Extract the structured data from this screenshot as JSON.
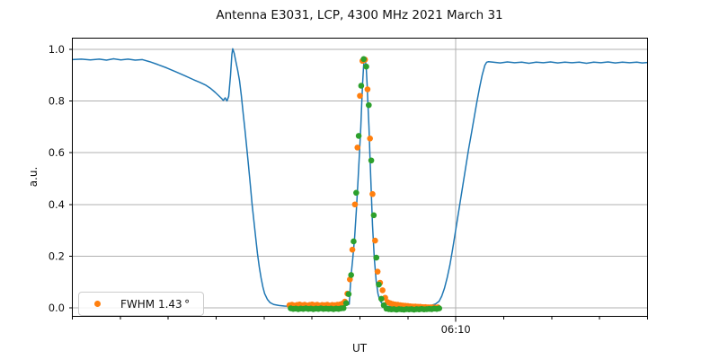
{
  "figure": {
    "title": "Antenna E3031, LCP, 4300 MHz 2021 March 31"
  },
  "chart_data": {
    "type": "line",
    "title": "Antenna E3031, LCP, 4300 MHz 2021 March 31",
    "xlabel": "UT",
    "ylabel": "a.u.",
    "x_axis": {
      "lim": [
        0,
        60
      ],
      "unit": "minutes since 05:30 UT (estimated from 5-min minor ticks)",
      "minor_tick_step": 5,
      "major_ticks": [
        {
          "x": 40,
          "label": "06:10"
        }
      ]
    },
    "y_axis": {
      "lim": [
        -0.033,
        1.043
      ],
      "ticks": [
        0.0,
        0.2,
        0.4,
        0.6,
        0.8,
        1.0
      ]
    },
    "grid": {
      "horizontal": true,
      "vertical_major_only": true,
      "color": "#b0b0b0"
    },
    "colors": {
      "line": "#1f77b4",
      "scatter_a": "#ff7f0e",
      "scatter_b": "#2ca02c",
      "spine": "#000000"
    },
    "legend": {
      "label": "FWHM 1.43 °",
      "position": "lower left",
      "marker_color": "#ff7f0e"
    },
    "series": [
      {
        "name": "drift-scan-line",
        "type": "line",
        "color": "#1f77b4",
        "width": 1.5,
        "points": [
          [
            0,
            0.96
          ],
          [
            0.94,
            0.962
          ],
          [
            1.88,
            0.959
          ],
          [
            2.81,
            0.962
          ],
          [
            3.56,
            0.958
          ],
          [
            4.31,
            0.963
          ],
          [
            5.06,
            0.959
          ],
          [
            5.81,
            0.962
          ],
          [
            6.56,
            0.958
          ],
          [
            7.31,
            0.96
          ],
          [
            8.06,
            0.952
          ],
          [
            8.91,
            0.941
          ],
          [
            9.84,
            0.928
          ],
          [
            10.78,
            0.913
          ],
          [
            11.72,
            0.898
          ],
          [
            12.66,
            0.882
          ],
          [
            13.31,
            0.872
          ],
          [
            13.88,
            0.862
          ],
          [
            14.44,
            0.848
          ],
          [
            14.91,
            0.833
          ],
          [
            15.28,
            0.82
          ],
          [
            15.56,
            0.81
          ],
          [
            15.75,
            0.802
          ],
          [
            15.94,
            0.812
          ],
          [
            16.13,
            0.8
          ],
          [
            16.31,
            0.818
          ],
          [
            16.5,
            0.9
          ],
          [
            16.64,
            0.98
          ],
          [
            16.73,
            1.002
          ],
          [
            16.88,
            0.985
          ],
          [
            17.06,
            0.952
          ],
          [
            17.25,
            0.918
          ],
          [
            17.44,
            0.878
          ],
          [
            17.63,
            0.82
          ],
          [
            17.81,
            0.755
          ],
          [
            18.0,
            0.69
          ],
          [
            18.19,
            0.62
          ],
          [
            18.38,
            0.548
          ],
          [
            18.56,
            0.478
          ],
          [
            18.75,
            0.4
          ],
          [
            18.94,
            0.335
          ],
          [
            19.13,
            0.27
          ],
          [
            19.31,
            0.21
          ],
          [
            19.5,
            0.158
          ],
          [
            19.69,
            0.115
          ],
          [
            19.88,
            0.08
          ],
          [
            20.06,
            0.055
          ],
          [
            20.34,
            0.033
          ],
          [
            20.63,
            0.02
          ],
          [
            21.0,
            0.013
          ],
          [
            21.56,
            0.009
          ],
          [
            22.13,
            0.007
          ],
          [
            22.88,
            0.006
          ],
          [
            23.81,
            0.005
          ],
          [
            24.75,
            0.005
          ],
          [
            25.69,
            0.005
          ],
          [
            26.63,
            0.005
          ],
          [
            27.56,
            0.006
          ],
          [
            28.31,
            0.008
          ],
          [
            28.88,
            0.014
          ],
          [
            29.06,
            0.12
          ],
          [
            29.25,
            0.19
          ],
          [
            29.44,
            0.27
          ],
          [
            29.63,
            0.38
          ],
          [
            29.81,
            0.5
          ],
          [
            29.91,
            0.57
          ],
          [
            30.0,
            0.635
          ],
          [
            30.09,
            0.7
          ],
          [
            30.19,
            0.795
          ],
          [
            30.28,
            0.87
          ],
          [
            30.38,
            0.935
          ],
          [
            30.47,
            0.967
          ],
          [
            30.56,
            0.962
          ],
          [
            30.66,
            0.925
          ],
          [
            30.75,
            0.862
          ],
          [
            30.84,
            0.78
          ],
          [
            30.94,
            0.7
          ],
          [
            31.03,
            0.6
          ],
          [
            31.13,
            0.5
          ],
          [
            31.22,
            0.41
          ],
          [
            31.31,
            0.32
          ],
          [
            31.5,
            0.19
          ],
          [
            31.69,
            0.105
          ],
          [
            31.88,
            0.055
          ],
          [
            32.06,
            0.03
          ],
          [
            32.34,
            0.015
          ],
          [
            32.63,
            0.008
          ],
          [
            33.0,
            0.005
          ],
          [
            33.75,
            0.004
          ],
          [
            34.69,
            0.004
          ],
          [
            35.63,
            0.004
          ],
          [
            36.56,
            0.005
          ],
          [
            37.31,
            0.008
          ],
          [
            37.88,
            0.015
          ],
          [
            38.25,
            0.025
          ],
          [
            38.53,
            0.045
          ],
          [
            38.81,
            0.075
          ],
          [
            39.09,
            0.115
          ],
          [
            39.38,
            0.165
          ],
          [
            39.66,
            0.225
          ],
          [
            39.94,
            0.29
          ],
          [
            40.22,
            0.355
          ],
          [
            40.5,
            0.42
          ],
          [
            40.78,
            0.485
          ],
          [
            41.06,
            0.55
          ],
          [
            41.34,
            0.615
          ],
          [
            41.63,
            0.675
          ],
          [
            41.91,
            0.735
          ],
          [
            42.19,
            0.795
          ],
          [
            42.47,
            0.85
          ],
          [
            42.75,
            0.9
          ],
          [
            43.03,
            0.938
          ],
          [
            43.22,
            0.95
          ],
          [
            43.41,
            0.952
          ],
          [
            43.88,
            0.95
          ],
          [
            44.63,
            0.947
          ],
          [
            45.38,
            0.951
          ],
          [
            46.13,
            0.948
          ],
          [
            46.88,
            0.95
          ],
          [
            47.63,
            0.946
          ],
          [
            48.38,
            0.95
          ],
          [
            49.13,
            0.948
          ],
          [
            49.88,
            0.951
          ],
          [
            50.63,
            0.947
          ],
          [
            51.38,
            0.95
          ],
          [
            52.13,
            0.948
          ],
          [
            52.88,
            0.95
          ],
          [
            53.63,
            0.946
          ],
          [
            54.38,
            0.95
          ],
          [
            55.13,
            0.948
          ],
          [
            55.88,
            0.951
          ],
          [
            56.63,
            0.947
          ],
          [
            57.38,
            0.95
          ],
          [
            58.13,
            0.948
          ],
          [
            58.88,
            0.95
          ],
          [
            59.44,
            0.947
          ],
          [
            60,
            0.949
          ]
        ]
      },
      {
        "name": "fwhm-scan-orange",
        "type": "scatter",
        "color": "#ff7f0e",
        "marker_radius": 3.3,
        "points": [
          [
            22.65,
            0.01
          ],
          [
            22.91,
            0.012
          ],
          [
            23.18,
            0.009
          ],
          [
            23.44,
            0.011
          ],
          [
            23.7,
            0.013
          ],
          [
            23.96,
            0.01
          ],
          [
            24.23,
            0.012
          ],
          [
            24.49,
            0.009
          ],
          [
            24.75,
            0.011
          ],
          [
            25.01,
            0.013
          ],
          [
            25.28,
            0.01
          ],
          [
            25.54,
            0.012
          ],
          [
            25.8,
            0.009
          ],
          [
            26.06,
            0.011
          ],
          [
            26.33,
            0.01
          ],
          [
            26.59,
            0.012
          ],
          [
            26.85,
            0.009
          ],
          [
            27.11,
            0.011
          ],
          [
            27.38,
            0.01
          ],
          [
            27.64,
            0.012
          ],
          [
            27.9,
            0.013
          ],
          [
            28.16,
            0.016
          ],
          [
            28.43,
            0.024
          ],
          [
            28.69,
            0.055
          ],
          [
            28.95,
            0.11
          ],
          [
            29.21,
            0.225
          ],
          [
            29.48,
            0.4
          ],
          [
            29.74,
            0.62
          ],
          [
            30.0,
            0.82
          ],
          [
            30.26,
            0.955
          ],
          [
            30.53,
            0.96
          ],
          [
            30.79,
            0.845
          ],
          [
            31.05,
            0.655
          ],
          [
            31.31,
            0.44
          ],
          [
            31.58,
            0.26
          ],
          [
            31.84,
            0.14
          ],
          [
            32.1,
            0.097
          ],
          [
            32.36,
            0.068
          ],
          [
            32.63,
            0.039
          ],
          [
            32.89,
            0.022
          ],
          [
            33.15,
            0.018
          ],
          [
            33.41,
            0.015
          ],
          [
            33.68,
            0.013
          ],
          [
            33.94,
            0.012
          ],
          [
            34.2,
            0.01
          ],
          [
            34.46,
            0.009
          ],
          [
            34.73,
            0.008
          ],
          [
            34.99,
            0.007
          ],
          [
            35.25,
            0.006
          ],
          [
            35.51,
            0.005
          ],
          [
            35.78,
            0.005
          ],
          [
            36.04,
            0.004
          ],
          [
            36.3,
            0.004
          ],
          [
            36.56,
            0.003
          ],
          [
            36.83,
            0.003
          ],
          [
            37.09,
            0.002
          ],
          [
            37.35,
            0.002
          ],
          [
            37.61,
            0.002
          ],
          [
            37.88,
            0.001
          ],
          [
            38.14,
            0.002
          ]
        ]
      },
      {
        "name": "fwhm-scan-green",
        "type": "scatter",
        "color": "#2ca02c",
        "marker_radius": 3.3,
        "points": [
          [
            22.78,
            -0.002
          ],
          [
            23.04,
            -0.004
          ],
          [
            23.31,
            -0.003
          ],
          [
            23.57,
            -0.005
          ],
          [
            23.83,
            -0.003
          ],
          [
            24.09,
            -0.004
          ],
          [
            24.36,
            -0.002
          ],
          [
            24.62,
            -0.004
          ],
          [
            24.88,
            -0.003
          ],
          [
            25.14,
            -0.005
          ],
          [
            25.41,
            -0.003
          ],
          [
            25.67,
            -0.004
          ],
          [
            25.93,
            -0.002
          ],
          [
            26.19,
            -0.004
          ],
          [
            26.46,
            -0.003
          ],
          [
            26.72,
            -0.004
          ],
          [
            26.98,
            -0.003
          ],
          [
            27.24,
            -0.005
          ],
          [
            27.51,
            -0.003
          ],
          [
            27.77,
            -0.004
          ],
          [
            28.03,
            -0.002
          ],
          [
            28.29,
            -0.001
          ],
          [
            28.56,
            0.018
          ],
          [
            28.82,
            0.053
          ],
          [
            29.08,
            0.127
          ],
          [
            29.34,
            0.257
          ],
          [
            29.61,
            0.445
          ],
          [
            29.87,
            0.665
          ],
          [
            30.13,
            0.859
          ],
          [
            30.39,
            0.962
          ],
          [
            30.66,
            0.933
          ],
          [
            30.92,
            0.784
          ],
          [
            31.18,
            0.57
          ],
          [
            31.44,
            0.358
          ],
          [
            31.71,
            0.194
          ],
          [
            31.97,
            0.09
          ],
          [
            32.23,
            0.035
          ],
          [
            32.49,
            0.01
          ],
          [
            32.76,
            -0.003
          ],
          [
            33.02,
            -0.005
          ],
          [
            33.28,
            -0.006
          ],
          [
            33.54,
            -0.005
          ],
          [
            33.81,
            -0.007
          ],
          [
            34.07,
            -0.005
          ],
          [
            34.33,
            -0.006
          ],
          [
            34.59,
            -0.007
          ],
          [
            34.86,
            -0.005
          ],
          [
            35.12,
            -0.006
          ],
          [
            35.38,
            -0.005
          ],
          [
            35.64,
            -0.007
          ],
          [
            35.91,
            -0.005
          ],
          [
            36.17,
            -0.006
          ],
          [
            36.43,
            -0.004
          ],
          [
            36.69,
            -0.006
          ],
          [
            36.96,
            -0.005
          ],
          [
            37.22,
            -0.004
          ],
          [
            37.48,
            -0.005
          ],
          [
            37.74,
            -0.003
          ],
          [
            38.01,
            -0.004
          ],
          [
            38.27,
            -0.002
          ]
        ]
      }
    ]
  }
}
